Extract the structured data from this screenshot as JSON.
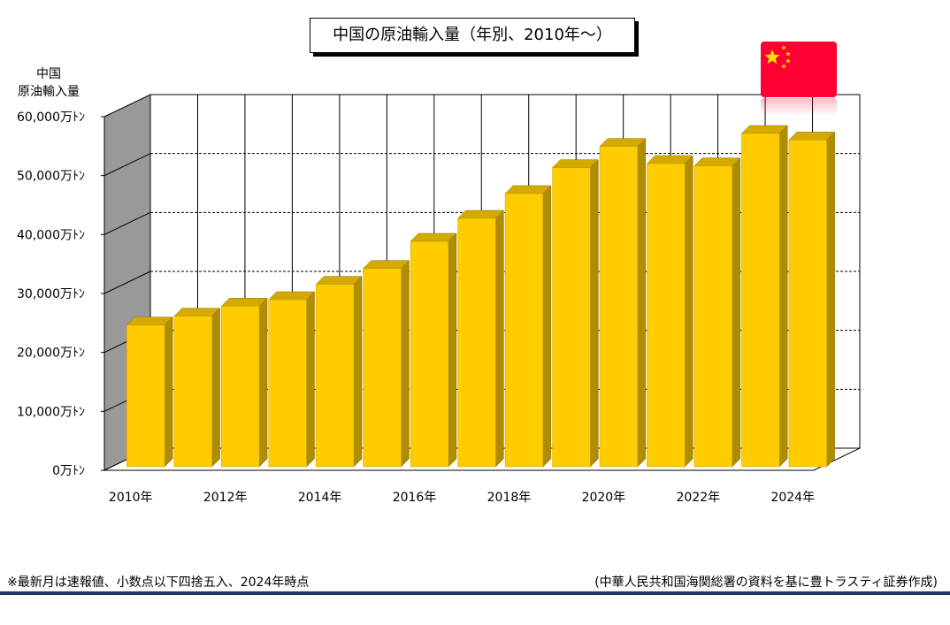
{
  "title": "中国の原油輸入量（年別、2010年～）",
  "ylabel_line1": "中国",
  "ylabel_line2": "原油輸入量",
  "flag_icon": "china-flag-icon",
  "colors": {
    "bar_front": "#ffcc00",
    "bar_top": "#d4aa00",
    "bar_side": "#b08c00",
    "wall": "#999999",
    "flag": "#ff0033",
    "rule": "#1f3864"
  },
  "chart_data": {
    "type": "bar",
    "style": "3d",
    "categories": [
      "2010年",
      "2011年",
      "2012年",
      "2013年",
      "2014年",
      "2015年",
      "2016年",
      "2017年",
      "2018年",
      "2019年",
      "2020年",
      "2021年",
      "2022年",
      "2023年",
      "2024年"
    ],
    "x_tick_labels": [
      "2010年",
      "",
      "2012年",
      "",
      "2014年",
      "",
      "2016年",
      "",
      "2018年",
      "",
      "2020年",
      "",
      "2022年",
      "",
      "2024年"
    ],
    "values": [
      23900,
      25400,
      27100,
      28200,
      30800,
      33500,
      38100,
      42000,
      46200,
      50600,
      54200,
      51300,
      50900,
      56400,
      55300
    ],
    "ylim": [
      0,
      60000
    ],
    "y_ticks": [
      0,
      10000,
      20000,
      30000,
      40000,
      50000,
      60000
    ],
    "y_tick_labels": [
      "0万ﾄﾝ",
      "10,000万ﾄﾝ",
      "20,000万ﾄﾝ",
      "30,000万ﾄﾝ",
      "40,000万ﾄﾝ",
      "50,000万ﾄﾝ",
      "60,000万ﾄﾝ"
    ],
    "grid": true,
    "legend": "none"
  },
  "footnote_left": "※最新月は速報値、小数点以下四捨五入、2024年時点",
  "footnote_right": "(中華人民共和国海関総署の資料を基に豊トラスティ証券作成)"
}
